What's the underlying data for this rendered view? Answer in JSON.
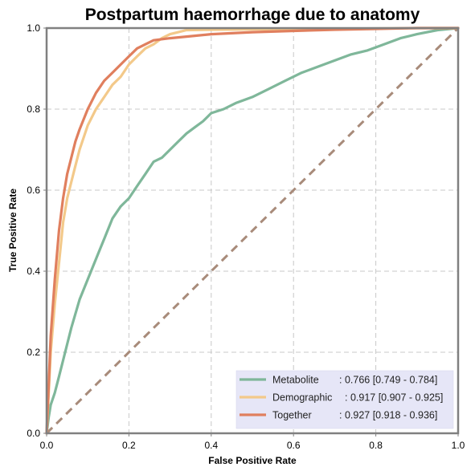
{
  "chart_data": {
    "type": "line",
    "title": "Postpartum haemorrhage due to anatomy",
    "xlabel": "False Positive Rate",
    "ylabel": "True Positive Rate",
    "xlim": [
      0,
      1
    ],
    "ylim": [
      0,
      1
    ],
    "x_ticks": [
      "0.0",
      "0.2",
      "0.4",
      "0.6",
      "0.8",
      "1.0"
    ],
    "y_ticks": [
      "0.0",
      "0.2",
      "0.4",
      "0.6",
      "0.8",
      "1.0"
    ],
    "grid": true,
    "legend_position": "lower-right",
    "series": [
      {
        "name": "Metabolite",
        "legend_value": ": 0.766 [0.749 - 0.784]",
        "color": "#7fb79a",
        "x": [
          0,
          0.005,
          0.01,
          0.02,
          0.03,
          0.04,
          0.05,
          0.06,
          0.08,
          0.1,
          0.12,
          0.14,
          0.16,
          0.18,
          0.2,
          0.22,
          0.24,
          0.26,
          0.28,
          0.3,
          0.32,
          0.34,
          0.36,
          0.38,
          0.4,
          0.43,
          0.46,
          0.5,
          0.54,
          0.58,
          0.62,
          0.66,
          0.7,
          0.74,
          0.78,
          0.82,
          0.86,
          0.9,
          0.95,
          1.0
        ],
        "y": [
          0,
          0.04,
          0.07,
          0.1,
          0.14,
          0.18,
          0.22,
          0.26,
          0.33,
          0.38,
          0.43,
          0.48,
          0.53,
          0.56,
          0.58,
          0.61,
          0.64,
          0.67,
          0.68,
          0.7,
          0.72,
          0.74,
          0.755,
          0.77,
          0.79,
          0.8,
          0.815,
          0.83,
          0.85,
          0.87,
          0.89,
          0.905,
          0.92,
          0.935,
          0.945,
          0.96,
          0.975,
          0.985,
          0.995,
          1.0
        ]
      },
      {
        "name": "Demographic",
        "legend_value": ": 0.917 [0.907 - 0.925]",
        "color": "#f3c98a",
        "x": [
          0,
          0.005,
          0.01,
          0.02,
          0.03,
          0.04,
          0.05,
          0.06,
          0.07,
          0.08,
          0.1,
          0.12,
          0.14,
          0.16,
          0.18,
          0.2,
          0.22,
          0.24,
          0.26,
          0.28,
          0.3,
          0.32,
          0.34,
          0.4,
          0.5,
          0.6,
          0.7,
          0.8,
          0.9,
          1.0
        ],
        "y": [
          0,
          0.1,
          0.2,
          0.32,
          0.42,
          0.52,
          0.58,
          0.62,
          0.66,
          0.7,
          0.76,
          0.8,
          0.83,
          0.86,
          0.88,
          0.91,
          0.93,
          0.95,
          0.96,
          0.975,
          0.985,
          0.99,
          0.995,
          0.996,
          0.997,
          0.998,
          0.998,
          0.999,
          1.0,
          1.0
        ]
      },
      {
        "name": "Together",
        "legend_value": ": 0.927 [0.918 - 0.936]",
        "color": "#e07f5e",
        "x": [
          0,
          0.005,
          0.01,
          0.02,
          0.03,
          0.04,
          0.05,
          0.06,
          0.07,
          0.08,
          0.1,
          0.12,
          0.14,
          0.16,
          0.18,
          0.2,
          0.22,
          0.24,
          0.26,
          0.3,
          0.35,
          0.4,
          0.5,
          0.6,
          0.7,
          0.8,
          0.9,
          1.0
        ],
        "y": [
          0,
          0.12,
          0.24,
          0.38,
          0.5,
          0.58,
          0.64,
          0.68,
          0.72,
          0.75,
          0.8,
          0.84,
          0.87,
          0.89,
          0.91,
          0.93,
          0.95,
          0.96,
          0.97,
          0.975,
          0.98,
          0.985,
          0.99,
          0.993,
          0.996,
          0.998,
          1.0,
          1.0
        ]
      },
      {
        "color": "#a88b7a",
        "style": "dashed",
        "x": [
          0,
          1
        ],
        "y": [
          0,
          1
        ]
      }
    ]
  }
}
